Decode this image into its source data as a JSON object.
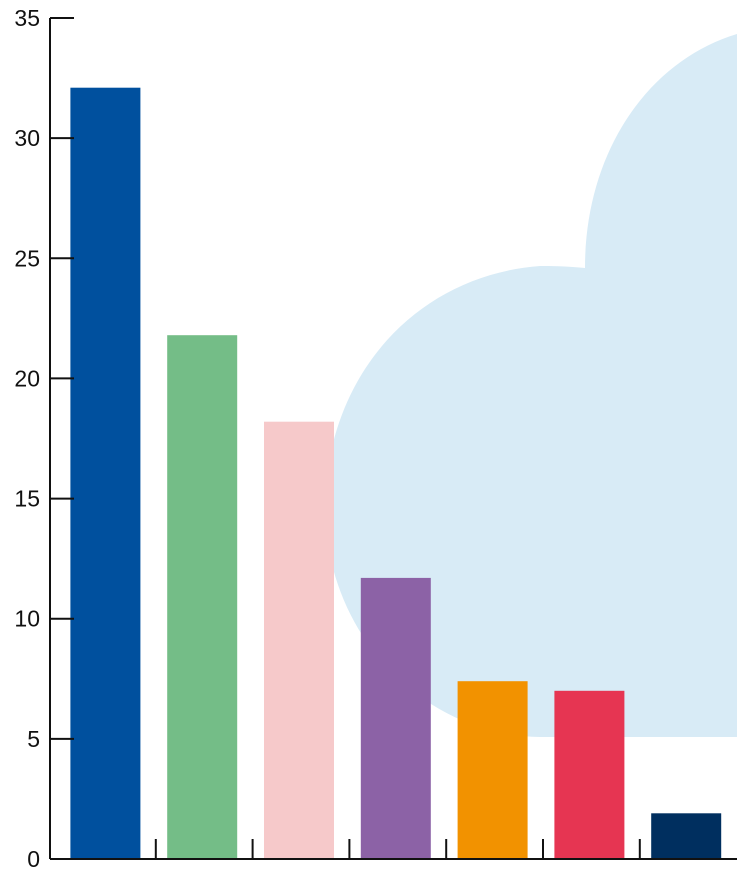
{
  "chart_data": {
    "type": "bar",
    "categories": [
      "",
      "",
      "",
      "",
      "",
      "",
      ""
    ],
    "values": [
      32.1,
      21.8,
      18.2,
      11.7,
      7.4,
      7.0,
      1.9
    ],
    "colors": [
      "#00509e",
      "#74bd87",
      "#f6c9ca",
      "#8c62a6",
      "#f29200",
      "#e63552",
      "#002f5f"
    ],
    "ylim": [
      0,
      35
    ],
    "yticks": [
      "0",
      "5",
      "10",
      "15",
      "20",
      "25",
      "30",
      "35"
    ],
    "title": "",
    "xlabel": "",
    "ylabel": "",
    "grid": false,
    "background_shape": "cloud",
    "background_color": "#d8ebf6"
  }
}
